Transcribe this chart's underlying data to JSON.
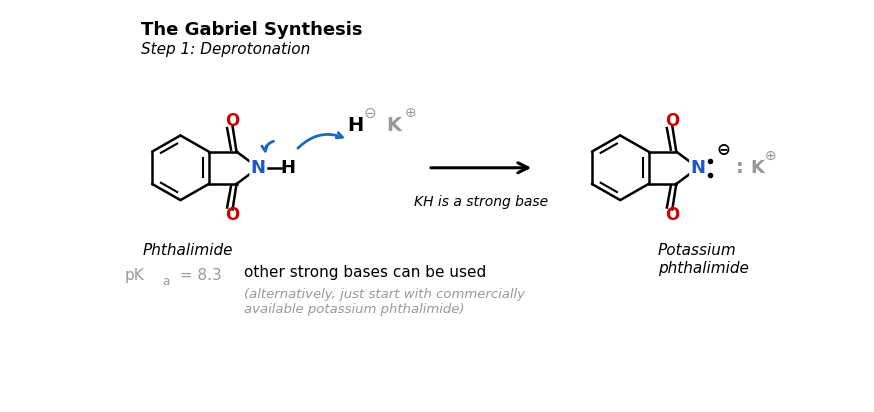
{
  "title": "The Gabriel Synthesis",
  "subtitle": "Step 1: Deprotonation",
  "background_color": "#ffffff",
  "label_phthalimide": "Phthalimide",
  "label_product": "Potassium\nphthalimide",
  "label_kh": "KH is a strong base",
  "label_other": "other strong bases can be used",
  "label_alt": "(alternatively, just start with commercially\navailable potassium phthalimide)",
  "color_black": "#000000",
  "color_red": "#cc0000",
  "color_blue": "#1a6abf",
  "color_gray": "#999999",
  "color_N": "#2255cc"
}
